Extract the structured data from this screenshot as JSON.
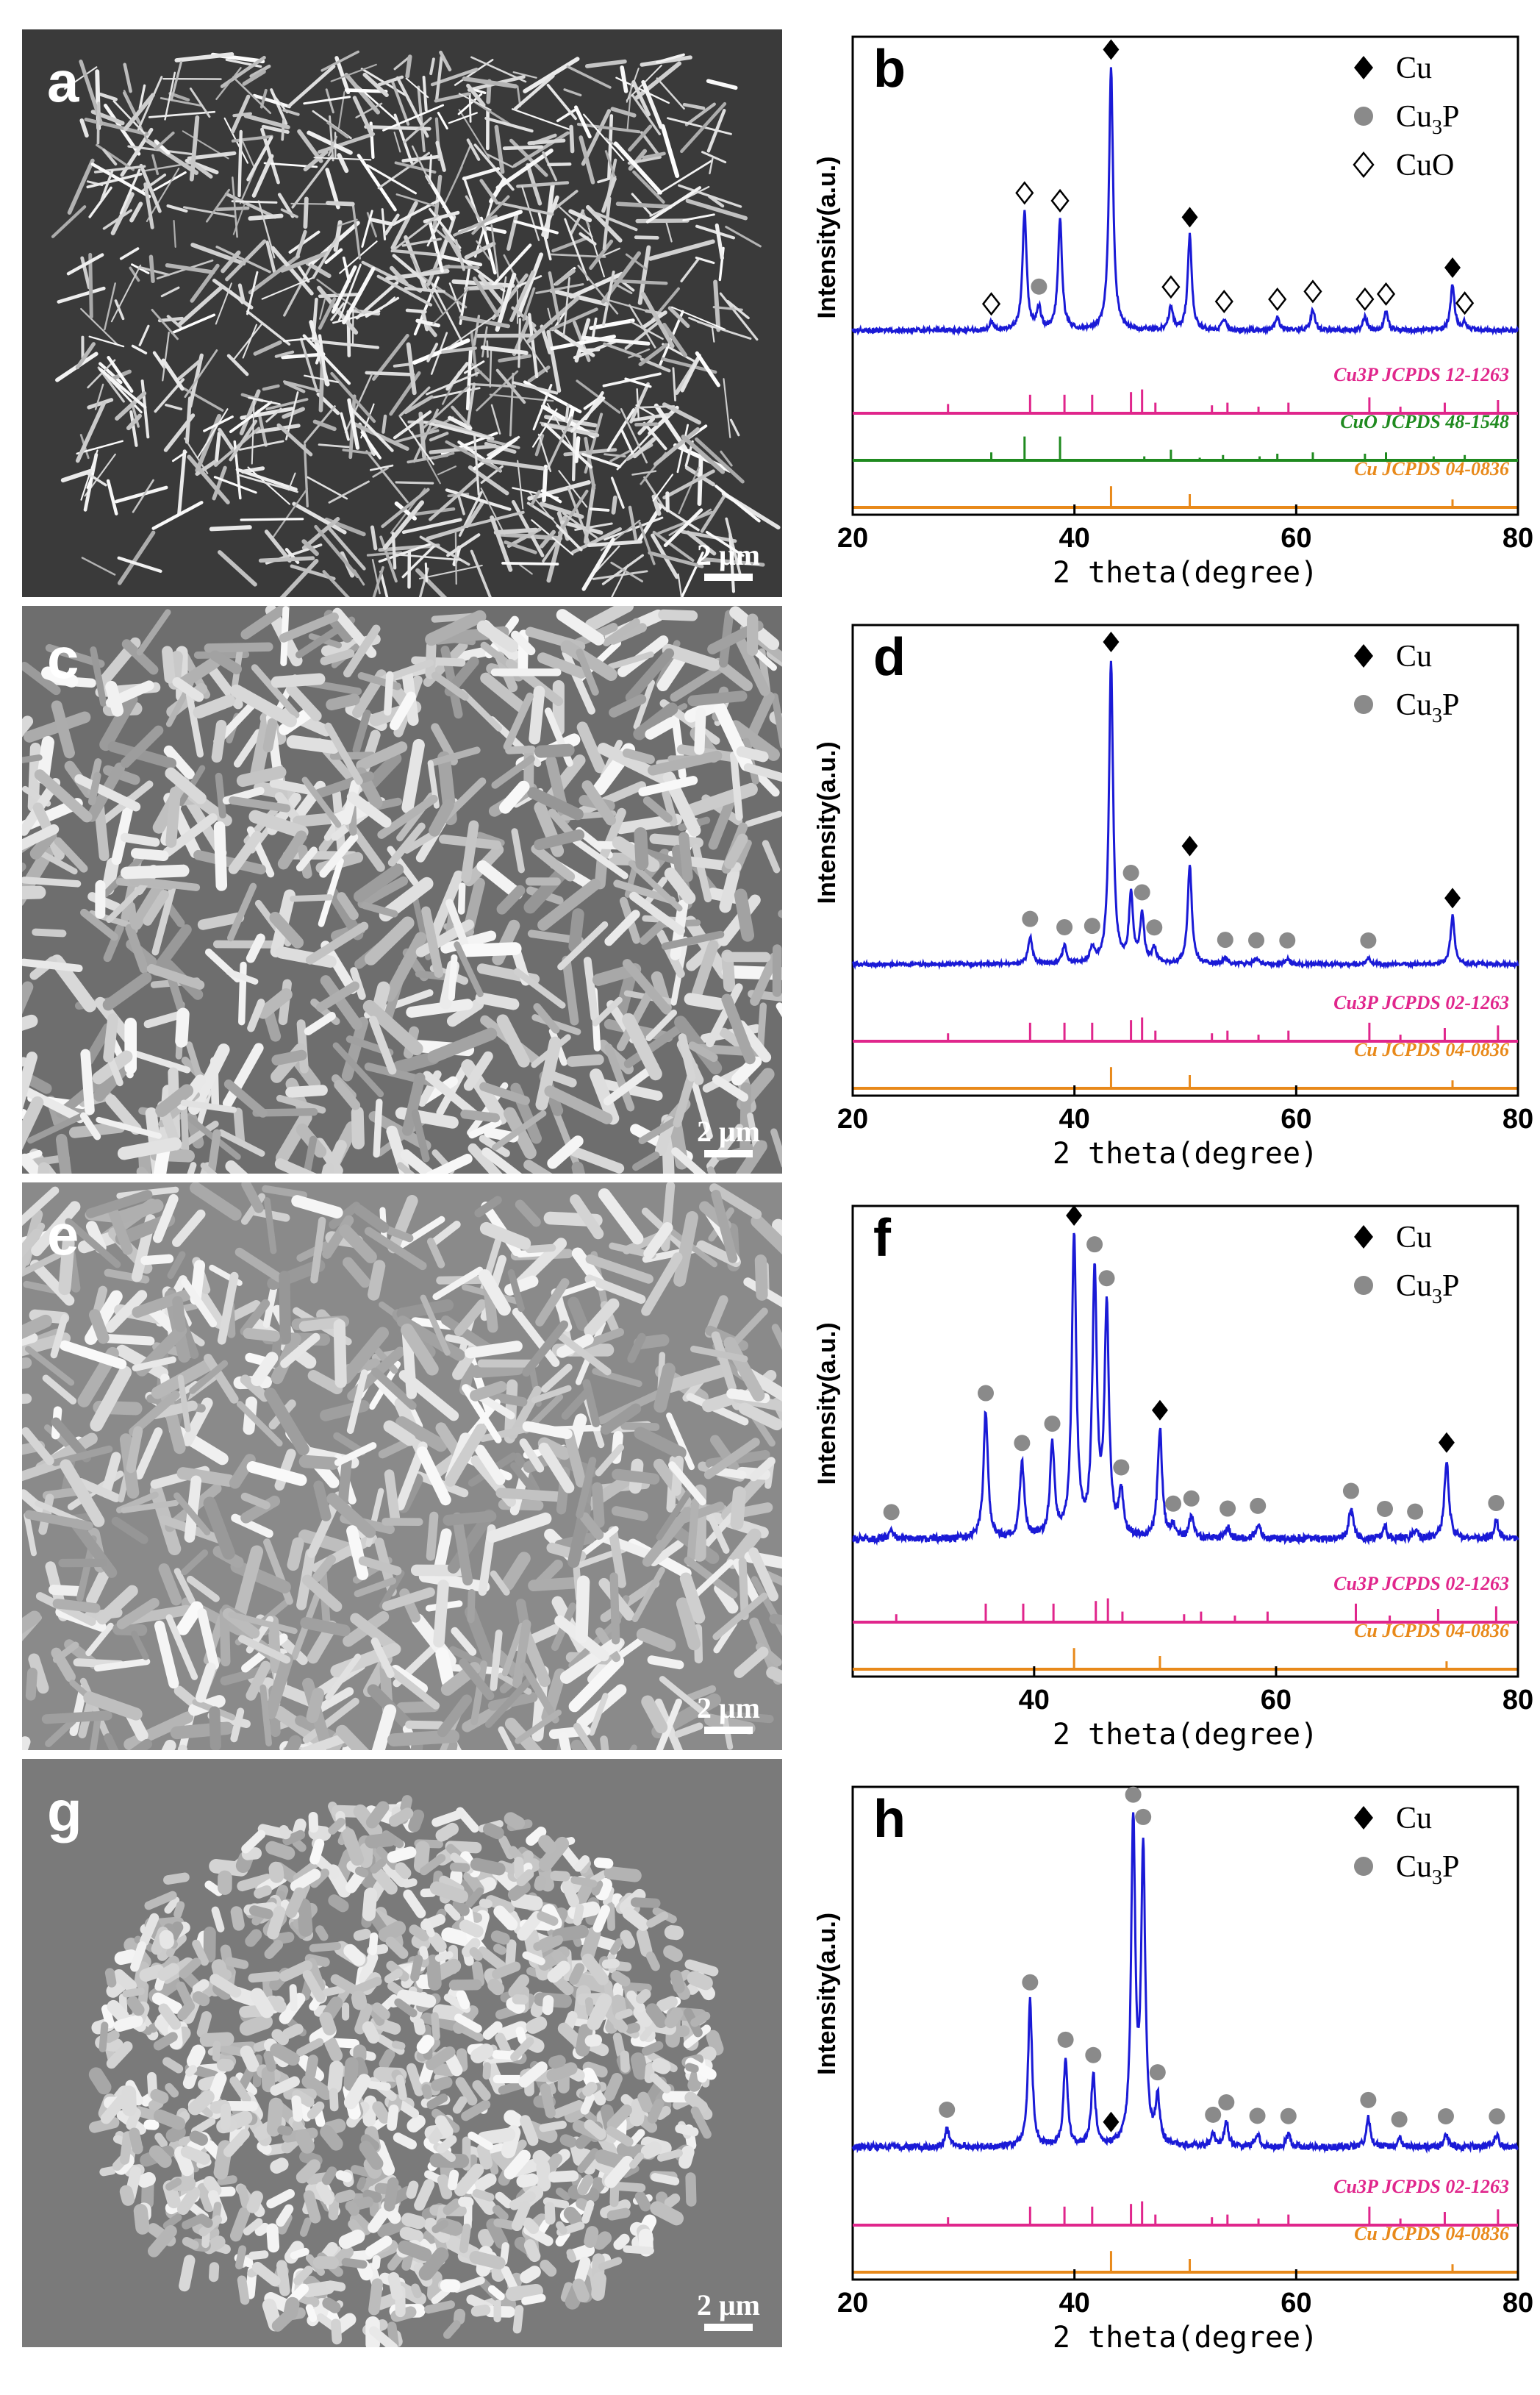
{
  "colors": {
    "pattern": "#1a1ad6",
    "ref_Cu3P": "#e0268c",
    "ref_CuO": "#1f8a1f",
    "ref_Cu": "#e8891a",
    "marker_gray": "#8a8a8a",
    "sem_base": "#9a9a9a"
  },
  "sem_panels": [
    {
      "letter": "a",
      "scale": "2 μm"
    },
    {
      "letter": "c",
      "scale": "2 μm"
    },
    {
      "letter": "e",
      "scale": "2 μm"
    },
    {
      "letter": "g",
      "scale": "2 μm"
    }
  ],
  "chart_data": [
    {
      "panel": "b",
      "type": "line",
      "xlabel": "2 theta(degree)",
      "ylabel": "Intensity(a.u.)",
      "xlim": [
        20,
        80
      ],
      "xticks": [
        20,
        40,
        60,
        80
      ],
      "legend": {
        "placement": "top-right",
        "entries": [
          {
            "marker": "diamond-filled",
            "label": "Cu"
          },
          {
            "marker": "circle",
            "label": "Cu3P"
          },
          {
            "marker": "diamond-open",
            "label": "CuO"
          }
        ]
      },
      "baseline": 0.08,
      "noise": 0.008,
      "peaks": [
        {
          "x": 32.5,
          "h": 0.03
        },
        {
          "x": 35.5,
          "h": 0.45
        },
        {
          "x": 36.8,
          "h": 0.08
        },
        {
          "x": 38.7,
          "h": 0.42
        },
        {
          "x": 43.3,
          "h": 1.0
        },
        {
          "x": 48.7,
          "h": 0.09
        },
        {
          "x": 50.4,
          "h": 0.36
        },
        {
          "x": 53.5,
          "h": 0.04
        },
        {
          "x": 58.3,
          "h": 0.05
        },
        {
          "x": 61.5,
          "h": 0.08
        },
        {
          "x": 66.2,
          "h": 0.05
        },
        {
          "x": 68.1,
          "h": 0.07
        },
        {
          "x": 74.1,
          "h": 0.17
        },
        {
          "x": 75.2,
          "h": 0.03
        }
      ],
      "markers": [
        {
          "x": 43.3,
          "type": "diamond-filled"
        },
        {
          "x": 50.4,
          "type": "diamond-filled"
        },
        {
          "x": 74.1,
          "type": "diamond-filled"
        },
        {
          "x": 36.8,
          "type": "circle"
        },
        {
          "x": 32.5,
          "type": "diamond-open"
        },
        {
          "x": 35.5,
          "type": "diamond-open"
        },
        {
          "x": 38.7,
          "type": "diamond-open"
        },
        {
          "x": 48.7,
          "type": "diamond-open"
        },
        {
          "x": 53.5,
          "type": "diamond-open"
        },
        {
          "x": 58.3,
          "type": "diamond-open"
        },
        {
          "x": 61.5,
          "type": "diamond-open"
        },
        {
          "x": 66.2,
          "type": "diamond-open"
        },
        {
          "x": 68.1,
          "type": "diamond-open"
        },
        {
          "x": 75.2,
          "type": "diamond-open"
        }
      ],
      "references": [
        {
          "label": "Cu3P JCPDS 12-1263",
          "color": "ref_Cu3P",
          "lines": [
            [
              28.6,
              0.35
            ],
            [
              36.0,
              0.7
            ],
            [
              39.1,
              0.7
            ],
            [
              41.6,
              0.7
            ],
            [
              45.1,
              0.8
            ],
            [
              46.1,
              0.9
            ],
            [
              47.3,
              0.4
            ],
            [
              52.4,
              0.3
            ],
            [
              53.8,
              0.4
            ],
            [
              56.6,
              0.25
            ],
            [
              59.3,
              0.4
            ],
            [
              66.6,
              0.6
            ],
            [
              69.4,
              0.25
            ],
            [
              73.4,
              0.4
            ],
            [
              78.2,
              0.5
            ]
          ]
        },
        {
          "label": "CuO JCPDS 48-1548",
          "color": "ref_CuO",
          "lines": [
            [
              32.5,
              0.3
            ],
            [
              35.5,
              0.9
            ],
            [
              38.7,
              0.9
            ],
            [
              46.3,
              0.15
            ],
            [
              48.7,
              0.4
            ],
            [
              51.3,
              0.1
            ],
            [
              53.4,
              0.2
            ],
            [
              56.7,
              0.15
            ],
            [
              58.3,
              0.25
            ],
            [
              61.5,
              0.3
            ],
            [
              66.2,
              0.25
            ],
            [
              68.1,
              0.3
            ],
            [
              72.4,
              0.15
            ],
            [
              75.2,
              0.2
            ]
          ]
        },
        {
          "label": "Cu JCPDS 04-0836",
          "color": "ref_Cu",
          "lines": [
            [
              43.3,
              0.8
            ],
            [
              50.4,
              0.5
            ],
            [
              74.1,
              0.3
            ]
          ]
        }
      ]
    },
    {
      "panel": "d",
      "type": "line",
      "xlabel": "2 theta(degree)",
      "ylabel": "Intensity(a.u.)",
      "xlim": [
        20,
        80
      ],
      "xticks": [
        20,
        40,
        60,
        80
      ],
      "legend": {
        "placement": "top-right",
        "entries": [
          {
            "marker": "diamond-filled",
            "label": "Cu"
          },
          {
            "marker": "circle",
            "label": "Cu3P"
          }
        ]
      },
      "baseline": 0.05,
      "noise": 0.006,
      "peaks": [
        {
          "x": 36.0,
          "h": 0.09
        },
        {
          "x": 39.1,
          "h": 0.06
        },
        {
          "x": 41.6,
          "h": 0.05
        },
        {
          "x": 43.3,
          "h": 1.0
        },
        {
          "x": 45.1,
          "h": 0.22
        },
        {
          "x": 46.1,
          "h": 0.16
        },
        {
          "x": 47.2,
          "h": 0.05
        },
        {
          "x": 50.4,
          "h": 0.33
        },
        {
          "x": 53.6,
          "h": 0.02
        },
        {
          "x": 56.4,
          "h": 0.02
        },
        {
          "x": 59.2,
          "h": 0.02
        },
        {
          "x": 66.5,
          "h": 0.02
        },
        {
          "x": 74.1,
          "h": 0.16
        }
      ],
      "markers": [
        {
          "x": 43.3,
          "type": "diamond-filled"
        },
        {
          "x": 50.4,
          "type": "diamond-filled"
        },
        {
          "x": 74.1,
          "type": "diamond-filled"
        },
        {
          "x": 36.0,
          "type": "circle"
        },
        {
          "x": 39.1,
          "type": "circle"
        },
        {
          "x": 41.6,
          "type": "circle"
        },
        {
          "x": 45.1,
          "type": "circle"
        },
        {
          "x": 46.1,
          "type": "circle"
        },
        {
          "x": 47.2,
          "type": "circle"
        },
        {
          "x": 53.6,
          "type": "circle"
        },
        {
          "x": 56.4,
          "type": "circle"
        },
        {
          "x": 59.2,
          "type": "circle"
        },
        {
          "x": 66.5,
          "type": "circle"
        }
      ],
      "references": [
        {
          "label": "Cu3P JCPDS 02-1263",
          "color": "ref_Cu3P",
          "lines": [
            [
              28.6,
              0.3
            ],
            [
              36.0,
              0.7
            ],
            [
              39.1,
              0.7
            ],
            [
              41.6,
              0.7
            ],
            [
              45.1,
              0.8
            ],
            [
              46.1,
              0.9
            ],
            [
              47.3,
              0.4
            ],
            [
              52.4,
              0.3
            ],
            [
              53.8,
              0.4
            ],
            [
              56.6,
              0.25
            ],
            [
              59.3,
              0.4
            ],
            [
              66.6,
              0.7
            ],
            [
              69.4,
              0.25
            ],
            [
              73.4,
              0.5
            ],
            [
              78.2,
              0.6
            ]
          ]
        },
        {
          "label": "Cu JCPDS 04-0836",
          "color": "ref_Cu",
          "lines": [
            [
              43.3,
              0.8
            ],
            [
              50.4,
              0.5
            ],
            [
              74.1,
              0.3
            ]
          ]
        }
      ]
    },
    {
      "panel": "f",
      "type": "line",
      "xlabel": "2 theta(degree)",
      "ylabel": "Intensity(a.u.)",
      "xlim": [
        25,
        80
      ],
      "xticks": [
        40,
        60,
        80
      ],
      "legend": {
        "placement": "top-right",
        "entries": [
          {
            "marker": "diamond-filled",
            "label": "Cu"
          },
          {
            "marker": "circle",
            "label": "Cu3P"
          }
        ]
      },
      "baseline": 0.07,
      "noise": 0.012,
      "peaks": [
        {
          "x": 28.2,
          "h": 0.03
        },
        {
          "x": 36.0,
          "h": 0.42
        },
        {
          "x": 39.0,
          "h": 0.25
        },
        {
          "x": 41.5,
          "h": 0.3
        },
        {
          "x": 43.3,
          "h": 1.0
        },
        {
          "x": 45.0,
          "h": 0.86
        },
        {
          "x": 46.0,
          "h": 0.75
        },
        {
          "x": 47.2,
          "h": 0.14
        },
        {
          "x": 51.5,
          "h": 0.04
        },
        {
          "x": 53.0,
          "h": 0.07
        },
        {
          "x": 56.0,
          "h": 0.04
        },
        {
          "x": 58.5,
          "h": 0.05
        },
        {
          "x": 66.2,
          "h": 0.1
        },
        {
          "x": 69.0,
          "h": 0.04
        },
        {
          "x": 71.5,
          "h": 0.03
        },
        {
          "x": 74.1,
          "h": 0.26
        },
        {
          "x": 78.2,
          "h": 0.06
        }
      ],
      "markers": [
        {
          "x": 43.3,
          "type": "diamond-filled"
        },
        {
          "x": 50.4,
          "type": "diamond-filled"
        },
        {
          "x": 74.1,
          "type": "diamond-filled"
        },
        {
          "x": 28.2,
          "type": "circle"
        },
        {
          "x": 36.0,
          "type": "circle"
        },
        {
          "x": 39.0,
          "type": "circle"
        },
        {
          "x": 41.5,
          "type": "circle"
        },
        {
          "x": 45.0,
          "type": "circle"
        },
        {
          "x": 46.0,
          "type": "circle"
        },
        {
          "x": 47.2,
          "type": "circle"
        },
        {
          "x": 51.5,
          "type": "circle"
        },
        {
          "x": 53.0,
          "type": "circle"
        },
        {
          "x": 56.0,
          "type": "circle"
        },
        {
          "x": 58.5,
          "type": "circle"
        },
        {
          "x": 66.2,
          "type": "circle"
        },
        {
          "x": 69.0,
          "type": "circle"
        },
        {
          "x": 71.5,
          "type": "circle"
        },
        {
          "x": 78.2,
          "type": "circle"
        }
      ],
      "extra_peaks": [
        {
          "x": 50.4,
          "h": 0.36
        }
      ],
      "references": [
        {
          "label": "Cu3P JCPDS 02-1263",
          "color": "ref_Cu3P",
          "lines": [
            [
              28.6,
              0.3
            ],
            [
              36.0,
              0.7
            ],
            [
              39.1,
              0.7
            ],
            [
              41.6,
              0.7
            ],
            [
              45.1,
              0.8
            ],
            [
              46.1,
              0.9
            ],
            [
              47.3,
              0.4
            ],
            [
              52.4,
              0.3
            ],
            [
              53.8,
              0.4
            ],
            [
              56.6,
              0.25
            ],
            [
              59.3,
              0.4
            ],
            [
              66.6,
              0.7
            ],
            [
              69.4,
              0.25
            ],
            [
              73.4,
              0.5
            ],
            [
              78.2,
              0.6
            ]
          ]
        },
        {
          "label": "Cu JCPDS 04-0836",
          "color": "ref_Cu",
          "lines": [
            [
              43.3,
              0.8
            ],
            [
              50.4,
              0.5
            ],
            [
              74.1,
              0.3
            ]
          ]
        }
      ]
    },
    {
      "panel": "h",
      "type": "line",
      "xlabel": "2 theta(degree)",
      "ylabel": "Intensity(a.u.)",
      "xlim": [
        20,
        80
      ],
      "xticks": [
        20,
        40,
        60,
        80
      ],
      "legend": {
        "placement": "top-right",
        "entries": [
          {
            "marker": "diamond-filled",
            "label": "Cu"
          },
          {
            "marker": "circle",
            "label": "Cu3P"
          }
        ]
      },
      "baseline": 0.05,
      "noise": 0.01,
      "peaks": [
        {
          "x": 28.5,
          "h": 0.06
        },
        {
          "x": 36.0,
          "h": 0.45
        },
        {
          "x": 39.2,
          "h": 0.27
        },
        {
          "x": 41.7,
          "h": 0.22
        },
        {
          "x": 45.3,
          "h": 1.0
        },
        {
          "x": 46.2,
          "h": 0.9
        },
        {
          "x": 47.5,
          "h": 0.14
        },
        {
          "x": 52.5,
          "h": 0.04
        },
        {
          "x": 53.7,
          "h": 0.08
        },
        {
          "x": 56.5,
          "h": 0.04
        },
        {
          "x": 59.3,
          "h": 0.04
        },
        {
          "x": 66.5,
          "h": 0.09
        },
        {
          "x": 69.3,
          "h": 0.03
        },
        {
          "x": 73.5,
          "h": 0.04
        },
        {
          "x": 78.1,
          "h": 0.04
        }
      ],
      "markers": [
        {
          "x": 43.3,
          "type": "diamond-filled"
        },
        {
          "x": 28.5,
          "type": "circle"
        },
        {
          "x": 36.0,
          "type": "circle"
        },
        {
          "x": 39.2,
          "type": "circle"
        },
        {
          "x": 41.7,
          "type": "circle"
        },
        {
          "x": 45.3,
          "type": "circle"
        },
        {
          "x": 46.2,
          "type": "circle"
        },
        {
          "x": 47.5,
          "type": "circle"
        },
        {
          "x": 52.5,
          "type": "circle"
        },
        {
          "x": 53.7,
          "type": "circle"
        },
        {
          "x": 56.5,
          "type": "circle"
        },
        {
          "x": 59.3,
          "type": "circle"
        },
        {
          "x": 66.5,
          "type": "circle"
        },
        {
          "x": 69.3,
          "type": "circle"
        },
        {
          "x": 73.5,
          "type": "circle"
        },
        {
          "x": 78.1,
          "type": "circle"
        }
      ],
      "references": [
        {
          "label": "Cu3P JCPDS 02-1263",
          "color": "ref_Cu3P",
          "lines": [
            [
              28.6,
              0.3
            ],
            [
              36.0,
              0.7
            ],
            [
              39.1,
              0.7
            ],
            [
              41.6,
              0.7
            ],
            [
              45.1,
              0.8
            ],
            [
              46.1,
              0.9
            ],
            [
              47.3,
              0.4
            ],
            [
              52.4,
              0.3
            ],
            [
              53.8,
              0.4
            ],
            [
              56.6,
              0.25
            ],
            [
              59.3,
              0.4
            ],
            [
              66.6,
              0.7
            ],
            [
              69.4,
              0.25
            ],
            [
              73.4,
              0.5
            ],
            [
              78.2,
              0.6
            ]
          ]
        },
        {
          "label": "Cu JCPDS 04-0836",
          "color": "ref_Cu",
          "lines": [
            [
              43.3,
              0.8
            ],
            [
              50.4,
              0.5
            ],
            [
              74.1,
              0.3
            ]
          ]
        }
      ]
    }
  ]
}
